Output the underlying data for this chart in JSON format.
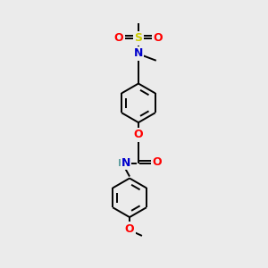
{
  "bg_color": "#ebebeb",
  "atom_colors": {
    "C": "#000000",
    "N": "#0000cc",
    "O": "#ff0000",
    "S": "#cccc00",
    "H": "#5f9ea0"
  },
  "figsize": [
    3.0,
    3.0
  ],
  "dpi": 100,
  "lw": 1.4,
  "ring_r": 22
}
